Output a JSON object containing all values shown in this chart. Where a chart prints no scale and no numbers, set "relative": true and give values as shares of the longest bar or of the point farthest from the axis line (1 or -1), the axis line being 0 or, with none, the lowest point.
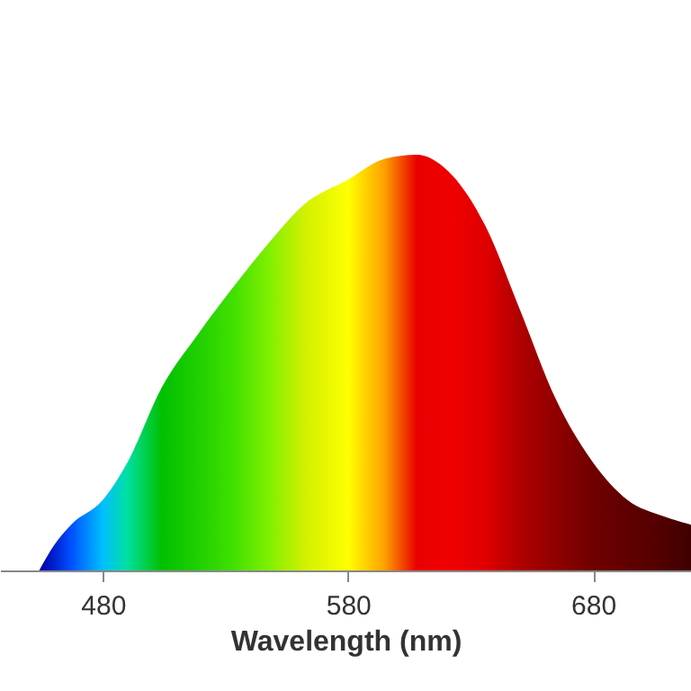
{
  "chart_data": {
    "type": "area",
    "relative": true,
    "xlabel": "Wavelength (nm)",
    "xlim": [
      438,
      720
    ],
    "xticks": [
      480,
      580,
      680
    ],
    "grid": false,
    "x": [
      454,
      460,
      467,
      480,
      490,
      504,
      519,
      533,
      548,
      562,
      580,
      595,
      608,
      621,
      636,
      650,
      665,
      680,
      694,
      709,
      720
    ],
    "series": [
      {
        "values": [
          0,
          0.06,
          0.11,
          0.17,
          0.26,
          0.44,
          0.57,
          0.68,
          0.79,
          0.88,
          0.94,
          0.99,
          1,
          0.96,
          0.83,
          0.63,
          0.41,
          0.26,
          0.17,
          0.13,
          0.11
        ],
        "colors": [
          "#0000a0",
          "#0020d0",
          "#0050ff",
          "#00c0ff",
          "#00e0a0",
          "#00c000",
          "#20d000",
          "#40e000",
          "#80f000",
          "#d0f000",
          "#ffff00",
          "#ffa000",
          "#e80000",
          "#f00000",
          "#e00000",
          "#b00000",
          "#900000",
          "#700000",
          "#600000",
          "#500000",
          "#400000"
        ]
      }
    ]
  }
}
